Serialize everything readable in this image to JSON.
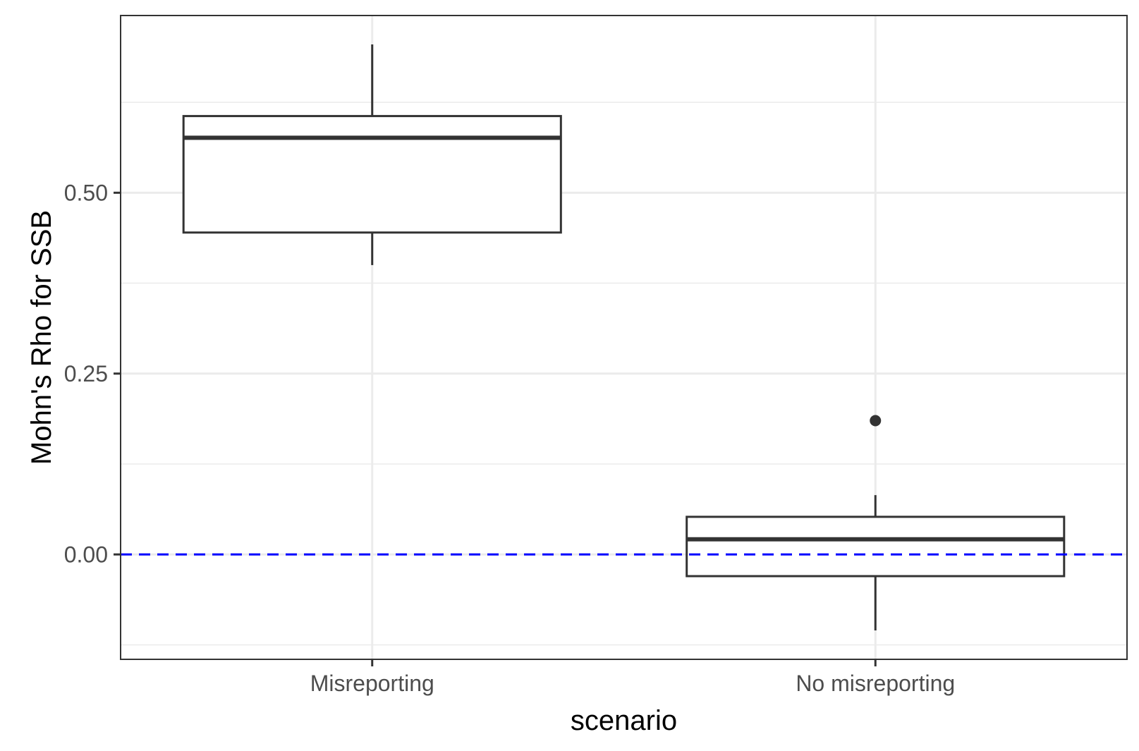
{
  "chart_data": {
    "type": "box",
    "xlabel": "scenario",
    "ylabel": "Mohn's Rho for SSB",
    "categories": [
      "Misreporting",
      "No misreporting"
    ],
    "boxes": [
      {
        "category": "Misreporting",
        "whisker_low": 0.4,
        "q1": 0.445,
        "median": 0.576,
        "q3": 0.606,
        "whisker_high": 0.705,
        "outliers": []
      },
      {
        "category": "No misreporting",
        "whisker_low": -0.105,
        "q1": -0.03,
        "median": 0.021,
        "q3": 0.052,
        "whisker_high": 0.082,
        "outliers": [
          0.185
        ]
      }
    ],
    "reference_line": {
      "y": 0,
      "color": "#0000ff",
      "style": "dashed"
    },
    "yticks": [
      0,
      0.25,
      0.5
    ],
    "ytick_labels": [
      "0.00",
      "0.25",
      "0.50"
    ],
    "ylim": [
      -0.145,
      0.745
    ],
    "grid": true,
    "colors": {
      "box_stroke": "#333333",
      "grid": "#ebebeb",
      "panel_border": "#333333"
    }
  }
}
